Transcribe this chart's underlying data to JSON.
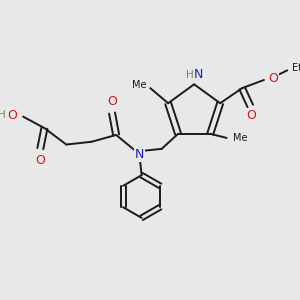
{
  "bg_color": "#e8e8e8",
  "bond_color": "#1a1a1a",
  "N_color": "#1a1acc",
  "O_color": "#cc1a1a",
  "H_color": "#6a8a6a",
  "font_size": 8.0,
  "bond_width": 1.4,
  "figsize": [
    3.0,
    3.0
  ],
  "dpi": 100,
  "xlim": [
    0,
    10
  ],
  "ylim": [
    0,
    10
  ]
}
